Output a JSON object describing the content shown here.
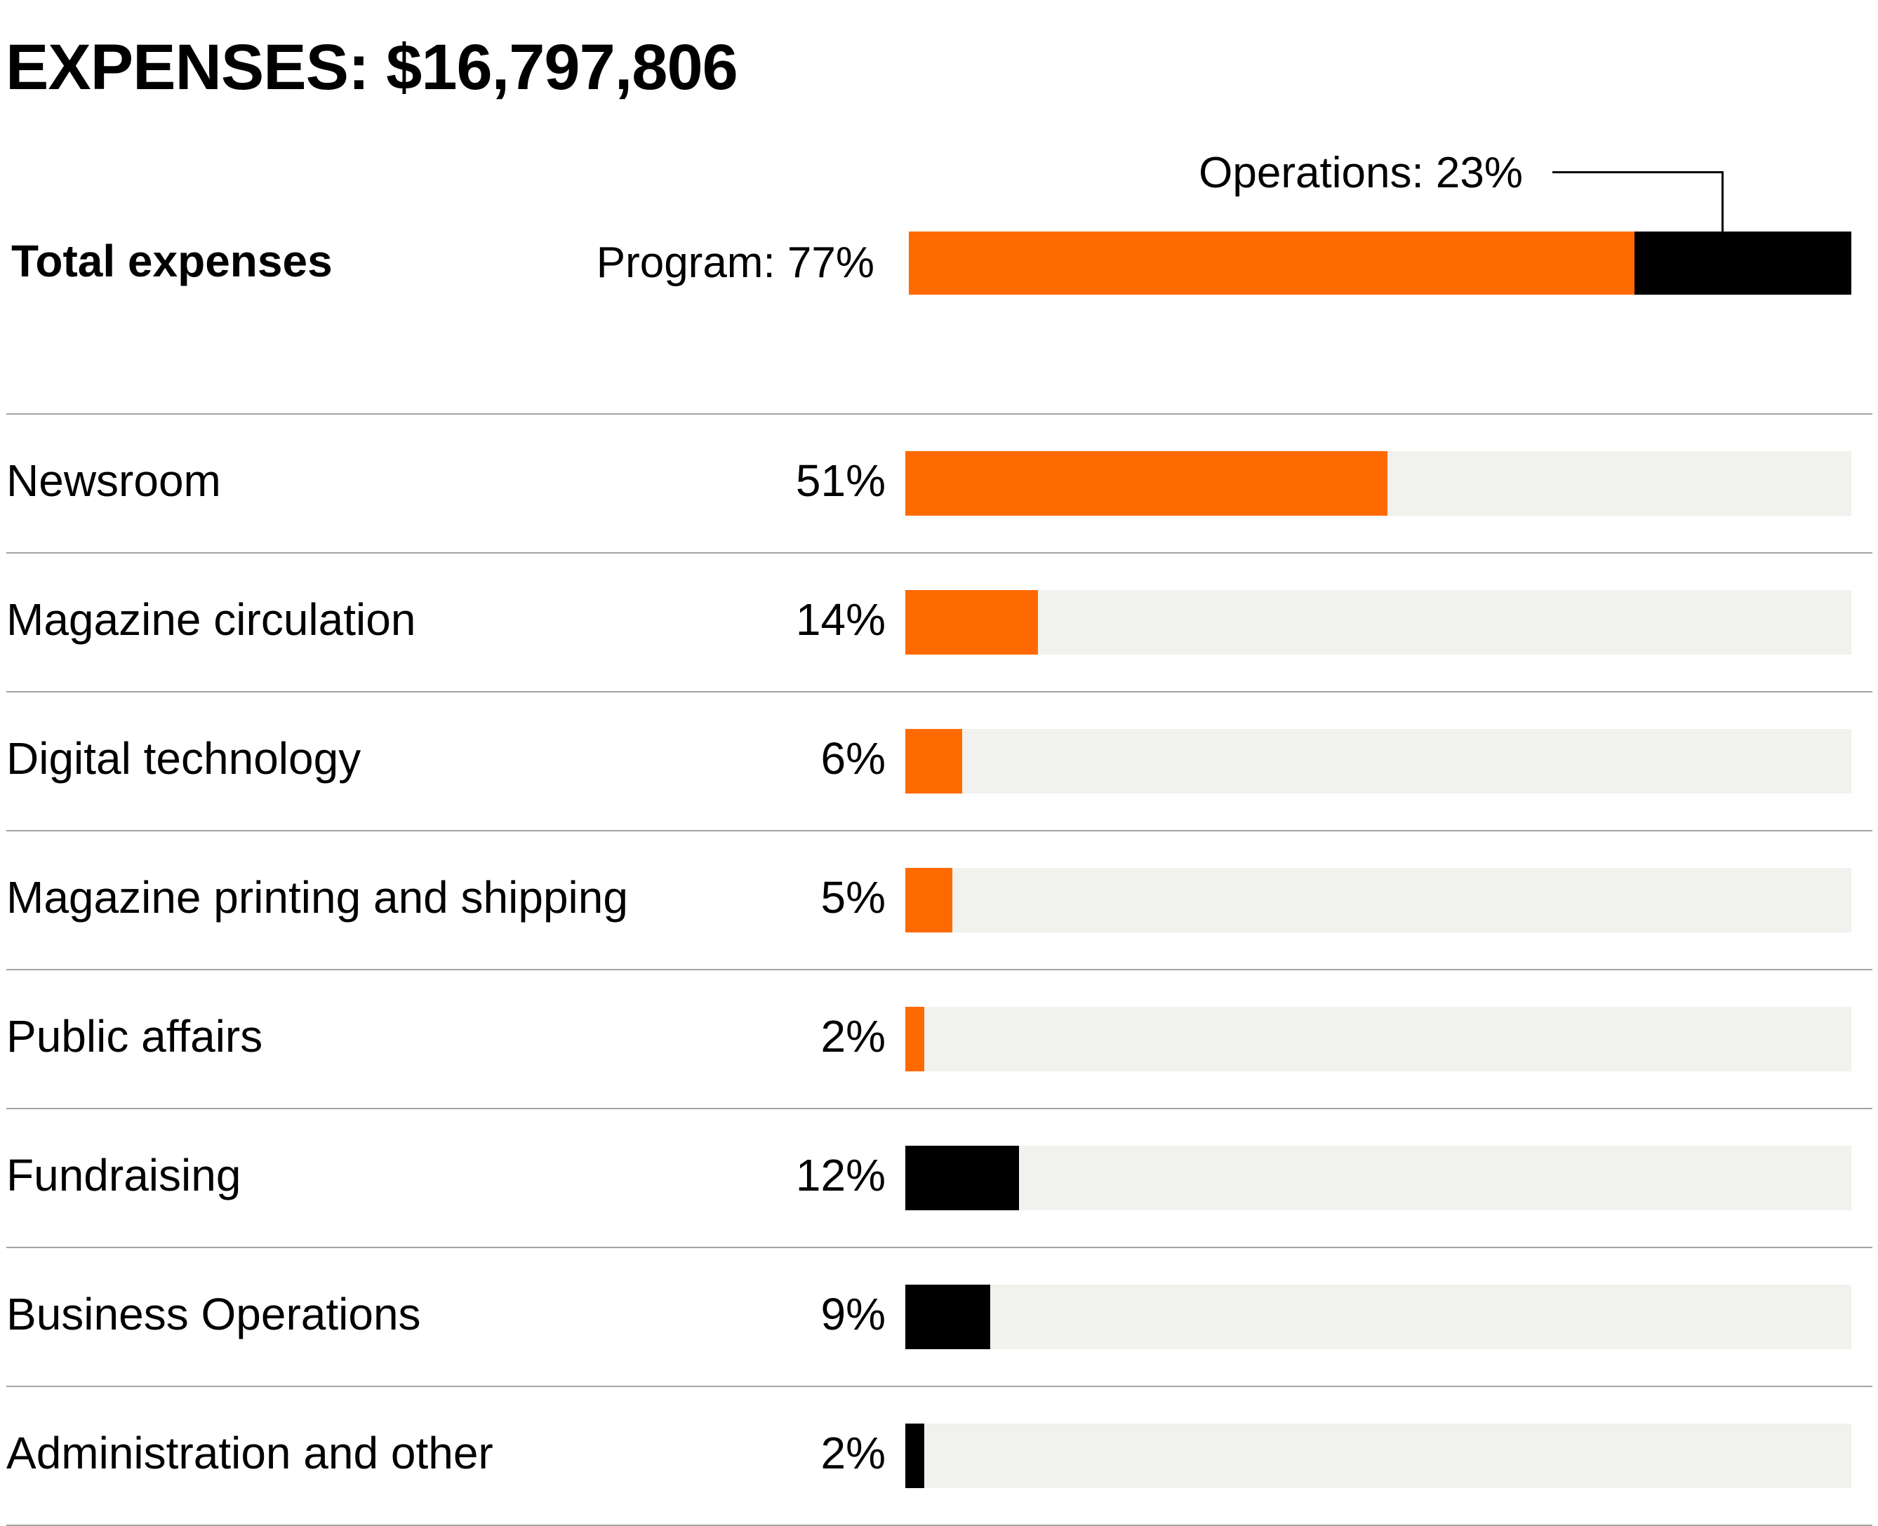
{
  "title": "EXPENSES: $16,797,806",
  "colors": {
    "program": "#ff6a00",
    "operations": "#000000",
    "track": "#f1f1ee",
    "separator": "#a3a3a3"
  },
  "chart_data": {
    "type": "bar",
    "title": "EXPENSES: $16,797,806",
    "summary": {
      "label": "Total expenses",
      "segments": [
        {
          "name": "Program",
          "label": "Program: 77%",
          "value": 77,
          "group": "program"
        },
        {
          "name": "Operations",
          "label": "Operations: 23%",
          "value": 23,
          "group": "operations"
        }
      ]
    },
    "categories": [
      "Newsroom",
      "Magazine circulation",
      "Digital technology",
      "Magazine printing and shipping",
      "Public affairs",
      "Fundraising",
      "Business Operations",
      "Administration and other"
    ],
    "rows": [
      {
        "label": "Newsroom",
        "pct_label": "51%",
        "value": 51,
        "group": "program"
      },
      {
        "label": "Magazine circulation",
        "pct_label": "14%",
        "value": 14,
        "group": "program"
      },
      {
        "label": "Digital technology",
        "pct_label": "6%",
        "value": 6,
        "group": "program"
      },
      {
        "label": "Magazine printing and shipping",
        "pct_label": "5%",
        "value": 5,
        "group": "program"
      },
      {
        "label": "Public affairs",
        "pct_label": "2%",
        "value": 2,
        "group": "program"
      },
      {
        "label": "Fundraising",
        "pct_label": "12%",
        "value": 12,
        "group": "operations"
      },
      {
        "label": "Business Operations",
        "pct_label": "9%",
        "value": 9,
        "group": "operations"
      },
      {
        "label": "Administration and other",
        "pct_label": "2%",
        "value": 2,
        "group": "operations"
      }
    ],
    "xlim": [
      0,
      100
    ],
    "unit": "percent",
    "xlabel": "",
    "ylabel": "",
    "grid": false,
    "legend": "none"
  }
}
